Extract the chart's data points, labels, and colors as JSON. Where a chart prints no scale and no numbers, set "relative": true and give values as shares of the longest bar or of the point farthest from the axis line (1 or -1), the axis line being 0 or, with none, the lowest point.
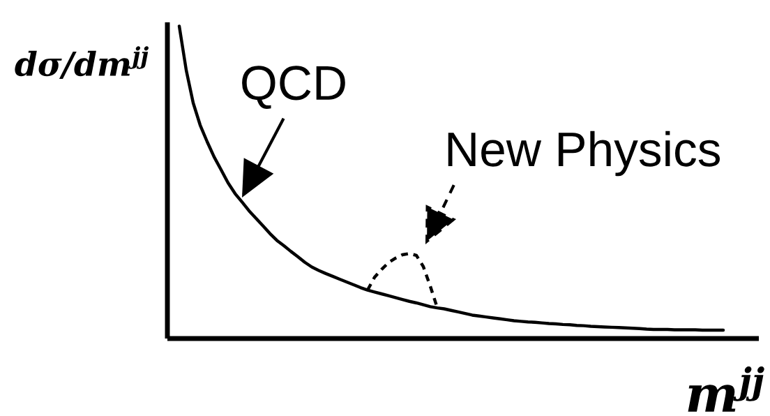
{
  "chart_data": {
    "type": "line",
    "relative": true,
    "xlabel": "m$^{jj}$",
    "ylabel": "dσ/dm$^{jj}$",
    "categories": [
      null,
      null,
      null,
      null,
      null,
      null,
      null,
      null,
      null,
      null,
      null,
      null,
      null,
      null,
      null,
      null,
      null,
      null,
      null,
      null,
      null,
      null,
      null,
      null,
      null,
      null,
      null,
      null,
      null,
      null,
      null,
      null,
      null,
      null,
      null,
      null,
      null,
      null,
      null,
      null,
      null,
      null,
      null,
      null,
      null,
      null,
      null,
      null,
      null,
      null,
      null,
      null,
      null,
      null,
      null,
      null,
      null,
      null,
      null,
      null,
      null,
      null,
      null,
      null,
      null,
      null,
      null,
      null,
      null,
      null,
      null,
      null,
      null,
      null,
      null,
      null,
      null,
      null,
      null
    ],
    "series": [
      {
        "name": "QCD",
        "color": "#000000",
        "line_style": "solid",
        "values": [
          1.0,
          0.859,
          0.754,
          0.683,
          0.63,
          0.581,
          0.54,
          0.498,
          0.464,
          0.437,
          0.409,
          0.385,
          0.361,
          0.336,
          0.314,
          0.297,
          0.279,
          0.262,
          0.244,
          0.229,
          0.218,
          0.208,
          0.199,
          0.19,
          0.181,
          0.172,
          0.163,
          0.155,
          0.149,
          0.143,
          0.137,
          0.131,
          0.125,
          0.119,
          0.114,
          0.108,
          0.102,
          0.098,
          0.095,
          0.09,
          0.085,
          0.08,
          0.075,
          0.072,
          0.069,
          0.066,
          0.063,
          0.06,
          0.057,
          0.055,
          0.053,
          0.052,
          0.05,
          0.048,
          0.047,
          0.045,
          0.044,
          0.042,
          0.041,
          0.039,
          0.038,
          0.037,
          0.036,
          0.035,
          0.034,
          0.033,
          0.032,
          0.03,
          0.029,
          0.029,
          0.029,
          0.028,
          0.028,
          0.028,
          0.028,
          0.027,
          0.027,
          0.027,
          0.027
        ]
      },
      {
        "name": "New Physics",
        "color": "#000000",
        "line_style": "dashed",
        "values": [
          null,
          null,
          null,
          null,
          null,
          null,
          null,
          null,
          null,
          null,
          null,
          null,
          null,
          null,
          null,
          null,
          null,
          null,
          null,
          null,
          null,
          null,
          null,
          null,
          null,
          null,
          null,
          0.155,
          0.196,
          0.221,
          0.243,
          0.257,
          0.268,
          0.272,
          0.266,
          0.23,
          0.167,
          0.098,
          null,
          null,
          null,
          null,
          null,
          null,
          null,
          null,
          null,
          null,
          null,
          null,
          null,
          null,
          null,
          null,
          null,
          null,
          null,
          null,
          null,
          null,
          null,
          null,
          null,
          null,
          null,
          null,
          null,
          null,
          null,
          null,
          null,
          null,
          null,
          null,
          null,
          null,
          null,
          null,
          null
        ]
      }
    ]
  }
}
